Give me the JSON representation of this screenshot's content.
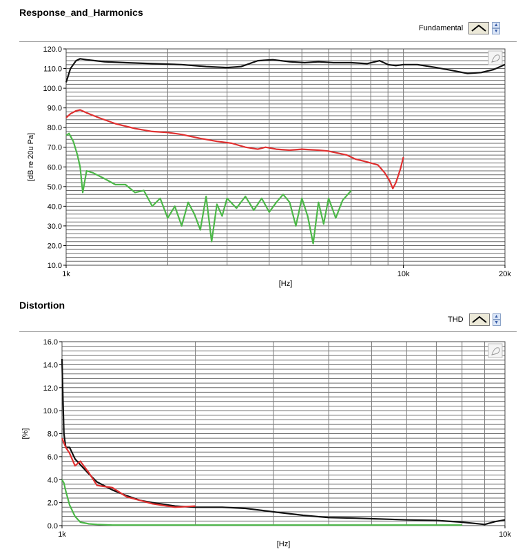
{
  "panels": [
    {
      "title": "Response_and_Harmonics",
      "legend_label": "Fundamental",
      "chart_data": {
        "type": "line",
        "xscale": "log",
        "xlim": [
          1000,
          20000
        ],
        "ylim": [
          10,
          120
        ],
        "xlabel": "[Hz]",
        "ylabel": "[dB re 20u Pa]",
        "yticks": [
          "10.0",
          "20.0",
          "30.0",
          "40.0",
          "50.0",
          "60.0",
          "70.0",
          "80.0",
          "90.0",
          "100.0",
          "110.0",
          "120.0"
        ],
        "xtick_labels": [
          {
            "x": 1000,
            "label": "1k"
          },
          {
            "x": 10000,
            "label": "10k"
          },
          {
            "x": 20000,
            "label": "20k"
          }
        ],
        "grid": true,
        "series": [
          {
            "color": "#111111",
            "x": [
              1000,
              1030,
              1070,
              1100,
              1150,
              1300,
              1500,
              1800,
              2200,
              2600,
              3000,
              3300,
              3700,
              4100,
              4600,
              5100,
              5600,
              6200,
              7000,
              7800,
              8500,
              9000,
              9500,
              10000,
              11000,
              12500,
              14000,
              15500,
              17000,
              18500,
              20000
            ],
            "y": [
              103,
              110,
              114,
              115,
              114.5,
              113.5,
              113,
              112.5,
              112,
              111,
              110.5,
              111,
              114,
              114.5,
              113.5,
              113,
              113.5,
              113,
              113,
              112.5,
              114,
              112,
              111.5,
              112,
              112,
              110.5,
              109,
              107.5,
              108,
              109.5,
              112
            ]
          },
          {
            "color": "#e03030",
            "x": [
              1000,
              1030,
              1070,
              1100,
              1150,
              1250,
              1400,
              1600,
              1800,
              2000,
              2200,
              2500,
              2800,
              3100,
              3400,
              3700,
              3900,
              4200,
              4600,
              5000,
              5600,
              6000,
              6400,
              6800,
              7200,
              7600,
              8000,
              8400,
              8800,
              9100,
              9300,
              9500,
              9800,
              10000
            ],
            "y": [
              85,
              87,
              88.5,
              89,
              87.5,
              85,
              82,
              79.5,
              78,
              77.5,
              76.5,
              74.5,
              73,
              72,
              70,
              69,
              70,
              69,
              68.5,
              69,
              68.5,
              68,
              67,
              66,
              64,
              63,
              62,
              61,
              57,
              53,
              49,
              52,
              59,
              65
            ]
          },
          {
            "color": "#4cb848",
            "x": [
              1000,
              1020,
              1050,
              1080,
              1100,
              1120,
              1150,
              1200,
              1300,
              1400,
              1500,
              1600,
              1700,
              1800,
              1900,
              2000,
              2100,
              2200,
              2300,
              2400,
              2500,
              2600,
              2700,
              2800,
              2900,
              3000,
              3200,
              3400,
              3600,
              3800,
              4000,
              4200,
              4400,
              4600,
              4800,
              5000,
              5200,
              5400,
              5600,
              5800,
              6000,
              6300,
              6600,
              7000
            ],
            "y": [
              76,
              77,
              73,
              66,
              60,
              47,
              58,
              57,
              54,
              51,
              51,
              47,
              48,
              40,
              44,
              34,
              40,
              30,
              42,
              36,
              28,
              45,
              22,
              41,
              35,
              44,
              39,
              45,
              38,
              44,
              37,
              42,
              46,
              42,
              30,
              44,
              35,
              21,
              42,
              31,
              44,
              34,
              43,
              48
            ]
          }
        ]
      }
    },
    {
      "title": "Distortion",
      "legend_label": "THD",
      "chart_data": {
        "type": "line",
        "xscale": "log",
        "xlim": [
          1000,
          10000
        ],
        "ylim": [
          0,
          16
        ],
        "xlabel": "[Hz]",
        "ylabel": "[%]",
        "yticks": [
          "0.0",
          "2.0",
          "4.0",
          "6.0",
          "8.0",
          "10.0",
          "12.0",
          "14.0",
          "16.0"
        ],
        "xtick_labels": [
          {
            "x": 1000,
            "label": "1k"
          },
          {
            "x": 10000,
            "label": "10k"
          }
        ],
        "grid": true,
        "series": [
          {
            "color": "#111111",
            "x": [
              1000,
              1005,
              1010,
              1020,
              1040,
              1070,
              1100,
              1150,
              1200,
              1300,
              1400,
              1500,
              1600,
              1800,
              2000,
              2300,
              2600,
              3000,
              3500,
              4000,
              4600,
              5000,
              5500,
              6000,
              7000,
              8000,
              8500,
              9000,
              9500,
              10000
            ],
            "y": [
              14.5,
              11,
              8,
              6.8,
              6.8,
              5.8,
              5.3,
              4.5,
              3.8,
              3.1,
              2.6,
              2.2,
              2.0,
              1.7,
              1.6,
              1.6,
              1.5,
              1.2,
              0.9,
              0.7,
              0.65,
              0.6,
              0.55,
              0.5,
              0.45,
              0.3,
              0.2,
              0.1,
              0.35,
              0.5
            ]
          },
          {
            "color": "#e03030",
            "x": [
              1000,
              1010,
              1020,
              1040,
              1070,
              1100,
              1150,
              1200,
              1300,
              1400,
              1500,
              1600,
              1800,
              2000
            ],
            "y": [
              7.6,
              7.2,
              6.8,
              6.3,
              5.2,
              5.6,
              4.6,
              3.5,
              3.3,
              2.5,
              2.2,
              1.9,
              1.6,
              1.7
            ]
          },
          {
            "color": "#4cb848",
            "x": [
              1000,
              1010,
              1020,
              1040,
              1070,
              1100,
              1150,
              1200,
              1300,
              1500,
              2000,
              3000,
              5000,
              8000
            ],
            "y": [
              4.0,
              3.7,
              3.0,
              1.8,
              0.8,
              0.3,
              0.15,
              0.1,
              0.05,
              0.05,
              0.05,
              0.05,
              0.05,
              0.05
            ]
          }
        ]
      }
    }
  ]
}
